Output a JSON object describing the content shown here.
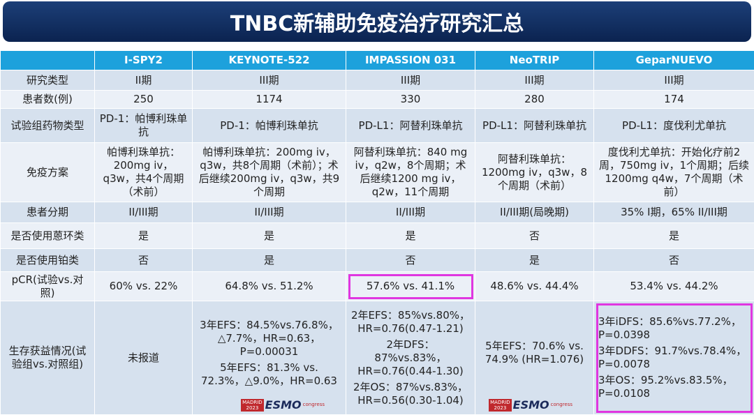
{
  "header": {
    "title": "TNBC新辅助免疫治疗研究汇总"
  },
  "table": {
    "columns": [
      "I-SPY2",
      "KEYNOTE-522",
      "IMPASSION 031",
      "NeoTRIP",
      "GeparNUEVO"
    ],
    "rows": [
      {
        "label": "研究类型",
        "cells": [
          "II期",
          "III期",
          "III期",
          "III期",
          "III期"
        ]
      },
      {
        "label": "患者数(例)",
        "cells": [
          "250",
          "1174",
          "330",
          "280",
          "174"
        ]
      },
      {
        "label": "试验组药物类型",
        "cells": [
          "PD-1：帕博利珠单抗",
          "PD-1：帕博利珠单抗",
          "PD-L1：阿替利珠单抗",
          "PD-L1：阿替利珠单抗",
          "PD-L1：度伐利尤单抗"
        ]
      },
      {
        "label": "免疫方案",
        "cells": [
          "帕博利珠单抗：200mg iv，q3w，共4个周期（术前）",
          "帕博利珠单抗：200mg iv，q3w，共8个周期（术前）；术后继续200mg iv，q3w，共9个周期",
          "阿替利珠单抗：840 mg iv，q2w，8个周期；术后继续1200 mg iv，q2w，11个周期",
          "阿替利珠单抗：1200mg iv，q3w，8个周期（术前）",
          "度伐利尤单抗：开始化疗前2周，750mg iv，1个周期；后续1200mg q4w，7个周期（术前）"
        ]
      },
      {
        "label": "患者分期",
        "cells": [
          "II/III期",
          "II/III期",
          "II/III期",
          "II/III期(局晚期)",
          "35% I期，65% II/III期"
        ]
      },
      {
        "label": "是否使用蒽环类",
        "cells": [
          "是",
          "是",
          "是",
          "否",
          "是"
        ]
      },
      {
        "label": "是否使用铂类",
        "cells": [
          "否",
          "是",
          "否",
          "是",
          "否"
        ]
      },
      {
        "label": "pCR(试验vs.对照)",
        "cells": [
          "60% vs. 22%",
          "64.8% vs. 51.2%",
          "57.6% vs. 41.1%",
          "48.6% vs. 44.4%",
          "53.4% vs. 44.2%"
        ]
      },
      {
        "label": "生存获益情况(试验组vs.对照组)",
        "cells": [
          [
            "未报道"
          ],
          [
            "3年EFS：84.5%vs.76.8%，△7.7%，HR=0.63，P=0.00031",
            "5年EFS：81.3% vs. 72.3%，△9.0%，HR=0.63"
          ],
          [
            "2年EFS：85%vs.80%，HR=0.76(0.47-1.21)",
            "2年DFS：87%vs.83%，HR=0.76(0.44-1.30)",
            "2年OS：87%vs.83%，HR=0.56(0.30-1.04)"
          ],
          [
            "5年EFS：70.6% vs. 74.9% (HR=1.076)"
          ],
          [
            "3年iDFS：85.6%vs.77.2%，P=0.0398",
            "3年DDFS：91.7%vs.78.4%，P=0.0078",
            "3年OS：95.2%vs.83.5%，P=0.0108"
          ]
        ]
      }
    ]
  },
  "logo": {
    "city": "MADRID",
    "year": "2023",
    "name": "ESMO",
    "suffix": "congress"
  }
}
